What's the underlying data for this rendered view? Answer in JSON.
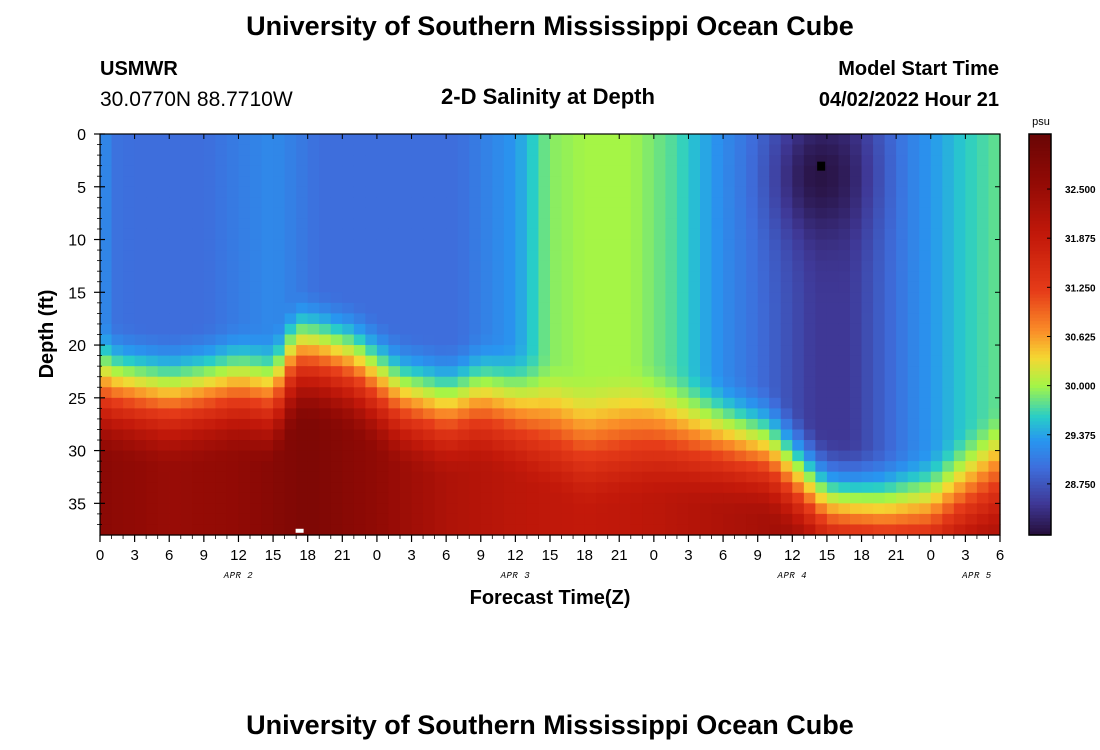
{
  "header": {
    "title": "University of Southern Mississippi Ocean Cube",
    "station": "USMWR",
    "coords": "30.0770N  88.7710W",
    "subtitle": "2-D Salinity at Depth",
    "model_label": "Model Start Time",
    "model_time": "04/02/2022 Hour 21"
  },
  "footer": {
    "title": "University of Southern Mississippi Ocean Cube"
  },
  "chart_data": {
    "type": "heatmap",
    "title": "2-D Salinity at Depth",
    "xlabel": "Forecast Time(Z)",
    "ylabel": "Depth (ft)",
    "x_tick_labels": [
      "0",
      "3",
      "6",
      "9",
      "12",
      "15",
      "18",
      "21",
      "0",
      "3",
      "6",
      "9",
      "12",
      "15",
      "18",
      "21",
      "0",
      "3",
      "6",
      "9",
      "12",
      "15",
      "18",
      "21",
      "0",
      "3",
      "6"
    ],
    "x_range_hours": [
      0,
      78
    ],
    "date_labels": [
      {
        "label": "APR 2",
        "hour": 12
      },
      {
        "label": "APR 3",
        "hour": 36
      },
      {
        "label": "APR 4",
        "hour": 60
      },
      {
        "label": "APR 5",
        "hour": 76
      }
    ],
    "y_ticks": [
      0,
      5,
      10,
      15,
      20,
      25,
      30,
      35
    ],
    "y_range": [
      0,
      38
    ],
    "y_inverted": true,
    "colorbar": {
      "unit": "psu",
      "range": [
        28.1,
        33.2
      ],
      "tick_labels": [
        "32.500",
        "31.875",
        "31.250",
        "30.625",
        "30.000",
        "29.375",
        "28.750"
      ],
      "ticks": [
        32.5,
        31.875,
        31.25,
        30.625,
        30.0,
        29.375,
        28.75
      ]
    },
    "interface_depth_ft": [
      [
        0,
        22
      ],
      [
        6,
        23
      ],
      [
        12,
        22
      ],
      [
        15,
        23
      ],
      [
        17,
        19
      ],
      [
        19,
        19
      ],
      [
        22,
        20
      ],
      [
        26,
        23
      ],
      [
        30,
        24
      ],
      [
        33,
        23
      ],
      [
        36,
        24
      ],
      [
        42,
        27
      ],
      [
        48,
        26
      ],
      [
        54,
        27
      ],
      [
        58,
        28
      ],
      [
        63,
        33
      ],
      [
        68,
        34
      ],
      [
        72,
        34
      ],
      [
        78,
        30
      ]
    ],
    "surface_salinity": [
      [
        0,
        29.3
      ],
      [
        1,
        29.0
      ],
      [
        3,
        28.95
      ],
      [
        9,
        28.95
      ],
      [
        15,
        29.2
      ],
      [
        19,
        28.95
      ],
      [
        24,
        28.95
      ],
      [
        31,
        28.95
      ],
      [
        36,
        29.3
      ],
      [
        39,
        29.9
      ],
      [
        42,
        30.0
      ],
      [
        46,
        30.0
      ],
      [
        50,
        29.7
      ],
      [
        54,
        29.2
      ],
      [
        57,
        28.95
      ],
      [
        62,
        28.5
      ],
      [
        65,
        28.5
      ],
      [
        70,
        29.1
      ],
      [
        75,
        29.6
      ],
      [
        78,
        29.8
      ]
    ],
    "surface_min_core": {
      "hour": 62.5,
      "depth_ft": 4,
      "salinity": 28.15
    },
    "bottom_salinity": [
      [
        0,
        32.7
      ],
      [
        6,
        32.5
      ],
      [
        12,
        32.6
      ],
      [
        18,
        32.9
      ],
      [
        24,
        32.6
      ],
      [
        30,
        32.2
      ],
      [
        36,
        32.0
      ],
      [
        42,
        31.9
      ],
      [
        48,
        32.0
      ],
      [
        54,
        32.2
      ],
      [
        60,
        32.4
      ],
      [
        66,
        32.5
      ],
      [
        72,
        32.4
      ],
      [
        78,
        32.2
      ]
    ]
  }
}
